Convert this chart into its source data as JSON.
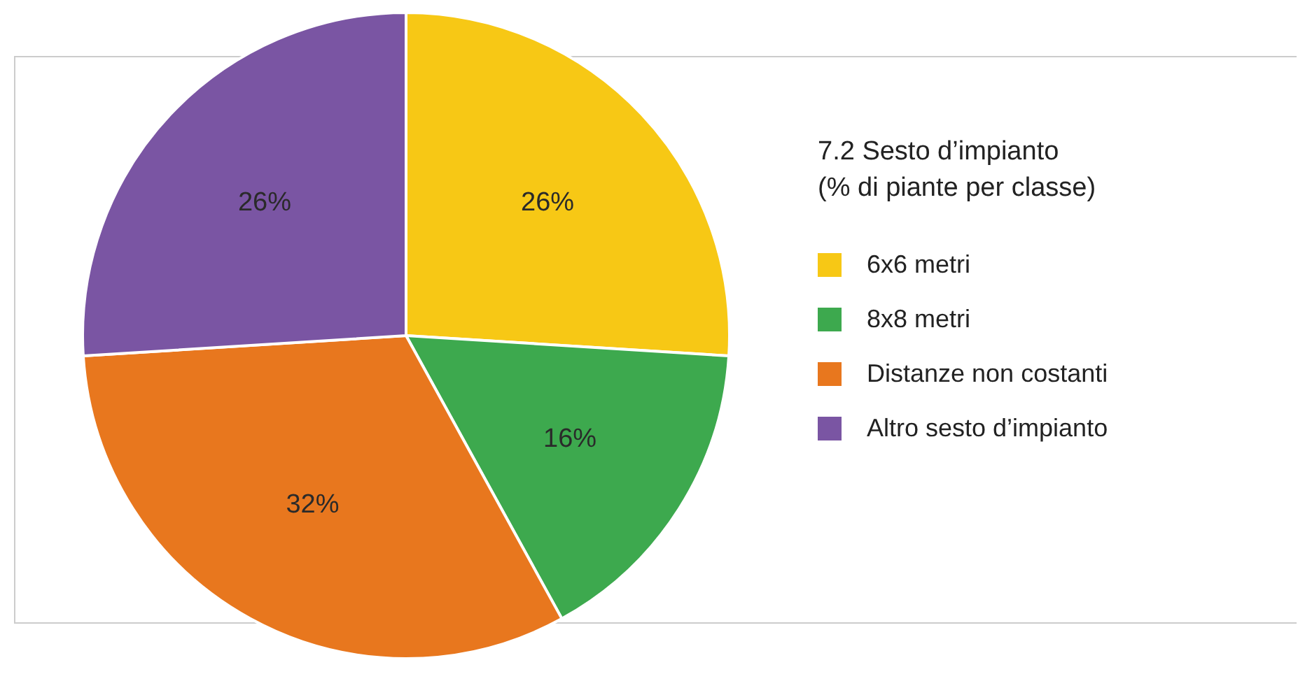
{
  "chart_data": {
    "type": "pie",
    "title": "7.2 Sesto d’impianto",
    "subtitle": "(% di piante per classe)",
    "categories": [
      "6x6 metri",
      "8x8 metri",
      "Distanze non costanti",
      "Altro sesto d’impianto"
    ],
    "values": [
      26,
      16,
      32,
      26
    ],
    "value_labels": [
      "26%",
      "16%",
      "32%",
      "26%"
    ],
    "colors": [
      "#f7c815",
      "#3da94e",
      "#e8771e",
      "#7a55a3"
    ],
    "legend": "right"
  }
}
